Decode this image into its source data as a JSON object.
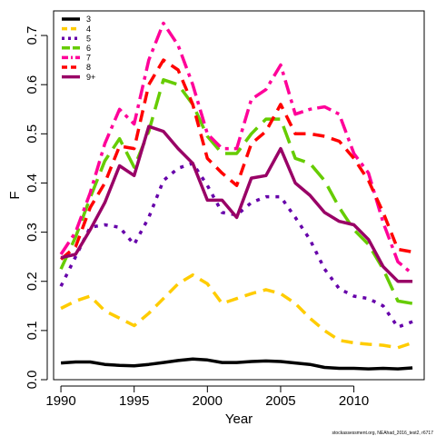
{
  "chart_data": {
    "type": "line",
    "xlabel": "Year",
    "ylabel": "F",
    "xlim": [
      1989.5,
      2014.8
    ],
    "ylim": [
      0.0,
      0.75
    ],
    "x_ticks": [
      1990,
      1995,
      2000,
      2005,
      2010
    ],
    "y_ticks": [
      0.0,
      0.1,
      0.2,
      0.3,
      0.4,
      0.5,
      0.6,
      0.7
    ],
    "grid": false,
    "legend_position": "top-left",
    "caption": "stockassessment.org, NEAhad_2016_test2, r6717",
    "x": [
      1990,
      1991,
      1992,
      1993,
      1994,
      1995,
      1996,
      1997,
      1998,
      1999,
      2000,
      2001,
      2002,
      2003,
      2004,
      2005,
      2006,
      2007,
      2008,
      2009,
      2010,
      2011,
      2012,
      2013,
      2014
    ],
    "series": [
      {
        "name": "3",
        "color": "#000000",
        "dash": "solid",
        "values": [
          0.034,
          0.036,
          0.036,
          0.031,
          0.029,
          0.028,
          0.031,
          0.035,
          0.039,
          0.042,
          0.04,
          0.035,
          0.035,
          0.037,
          0.038,
          0.037,
          0.034,
          0.031,
          0.025,
          0.023,
          0.023,
          0.022,
          0.023,
          0.022,
          0.024
        ]
      },
      {
        "name": "4",
        "color": "#ffcc00",
        "dash": "dash",
        "values": [
          0.145,
          0.16,
          0.17,
          0.14,
          0.125,
          0.11,
          0.135,
          0.165,
          0.195,
          0.213,
          0.195,
          0.155,
          0.165,
          0.175,
          0.183,
          0.175,
          0.155,
          0.125,
          0.1,
          0.08,
          0.075,
          0.072,
          0.07,
          0.065,
          0.075
        ]
      },
      {
        "name": "5",
        "color": "#6600aa",
        "dash": "dot",
        "values": [
          0.19,
          0.25,
          0.31,
          0.315,
          0.31,
          0.275,
          0.33,
          0.405,
          0.43,
          0.44,
          0.395,
          0.34,
          0.335,
          0.36,
          0.372,
          0.372,
          0.33,
          0.285,
          0.225,
          0.185,
          0.17,
          0.165,
          0.15,
          0.107,
          0.118
        ]
      },
      {
        "name": "6",
        "color": "#66cc00",
        "dash": "longdash",
        "values": [
          0.225,
          0.29,
          0.37,
          0.445,
          0.49,
          0.432,
          0.505,
          0.61,
          0.6,
          0.56,
          0.495,
          0.46,
          0.46,
          0.5,
          0.53,
          0.53,
          0.45,
          0.44,
          0.405,
          0.35,
          0.305,
          0.275,
          0.225,
          0.16,
          0.155
        ]
      },
      {
        "name": "7",
        "color": "#ff0099",
        "dash": "twodash",
        "values": [
          0.255,
          0.3,
          0.38,
          0.48,
          0.55,
          0.52,
          0.65,
          0.725,
          0.68,
          0.6,
          0.5,
          0.47,
          0.47,
          0.57,
          0.59,
          0.64,
          0.54,
          0.55,
          0.555,
          0.54,
          0.46,
          0.42,
          0.32,
          0.24,
          0.215
        ]
      },
      {
        "name": "8",
        "color": "#ff0000",
        "dash": "dash",
        "values": [
          0.245,
          0.27,
          0.35,
          0.4,
          0.475,
          0.47,
          0.6,
          0.65,
          0.63,
          0.56,
          0.45,
          0.42,
          0.395,
          0.48,
          0.505,
          0.56,
          0.5,
          0.5,
          0.495,
          0.485,
          0.45,
          0.405,
          0.34,
          0.265,
          0.26
        ]
      },
      {
        "name": "9+",
        "color": "#990066",
        "dash": "solid",
        "values": [
          0.248,
          0.255,
          0.305,
          0.36,
          0.435,
          0.415,
          0.515,
          0.505,
          0.47,
          0.44,
          0.365,
          0.365,
          0.33,
          0.41,
          0.415,
          0.47,
          0.4,
          0.375,
          0.34,
          0.322,
          0.315,
          0.285,
          0.23,
          0.2,
          0.2
        ]
      }
    ]
  }
}
